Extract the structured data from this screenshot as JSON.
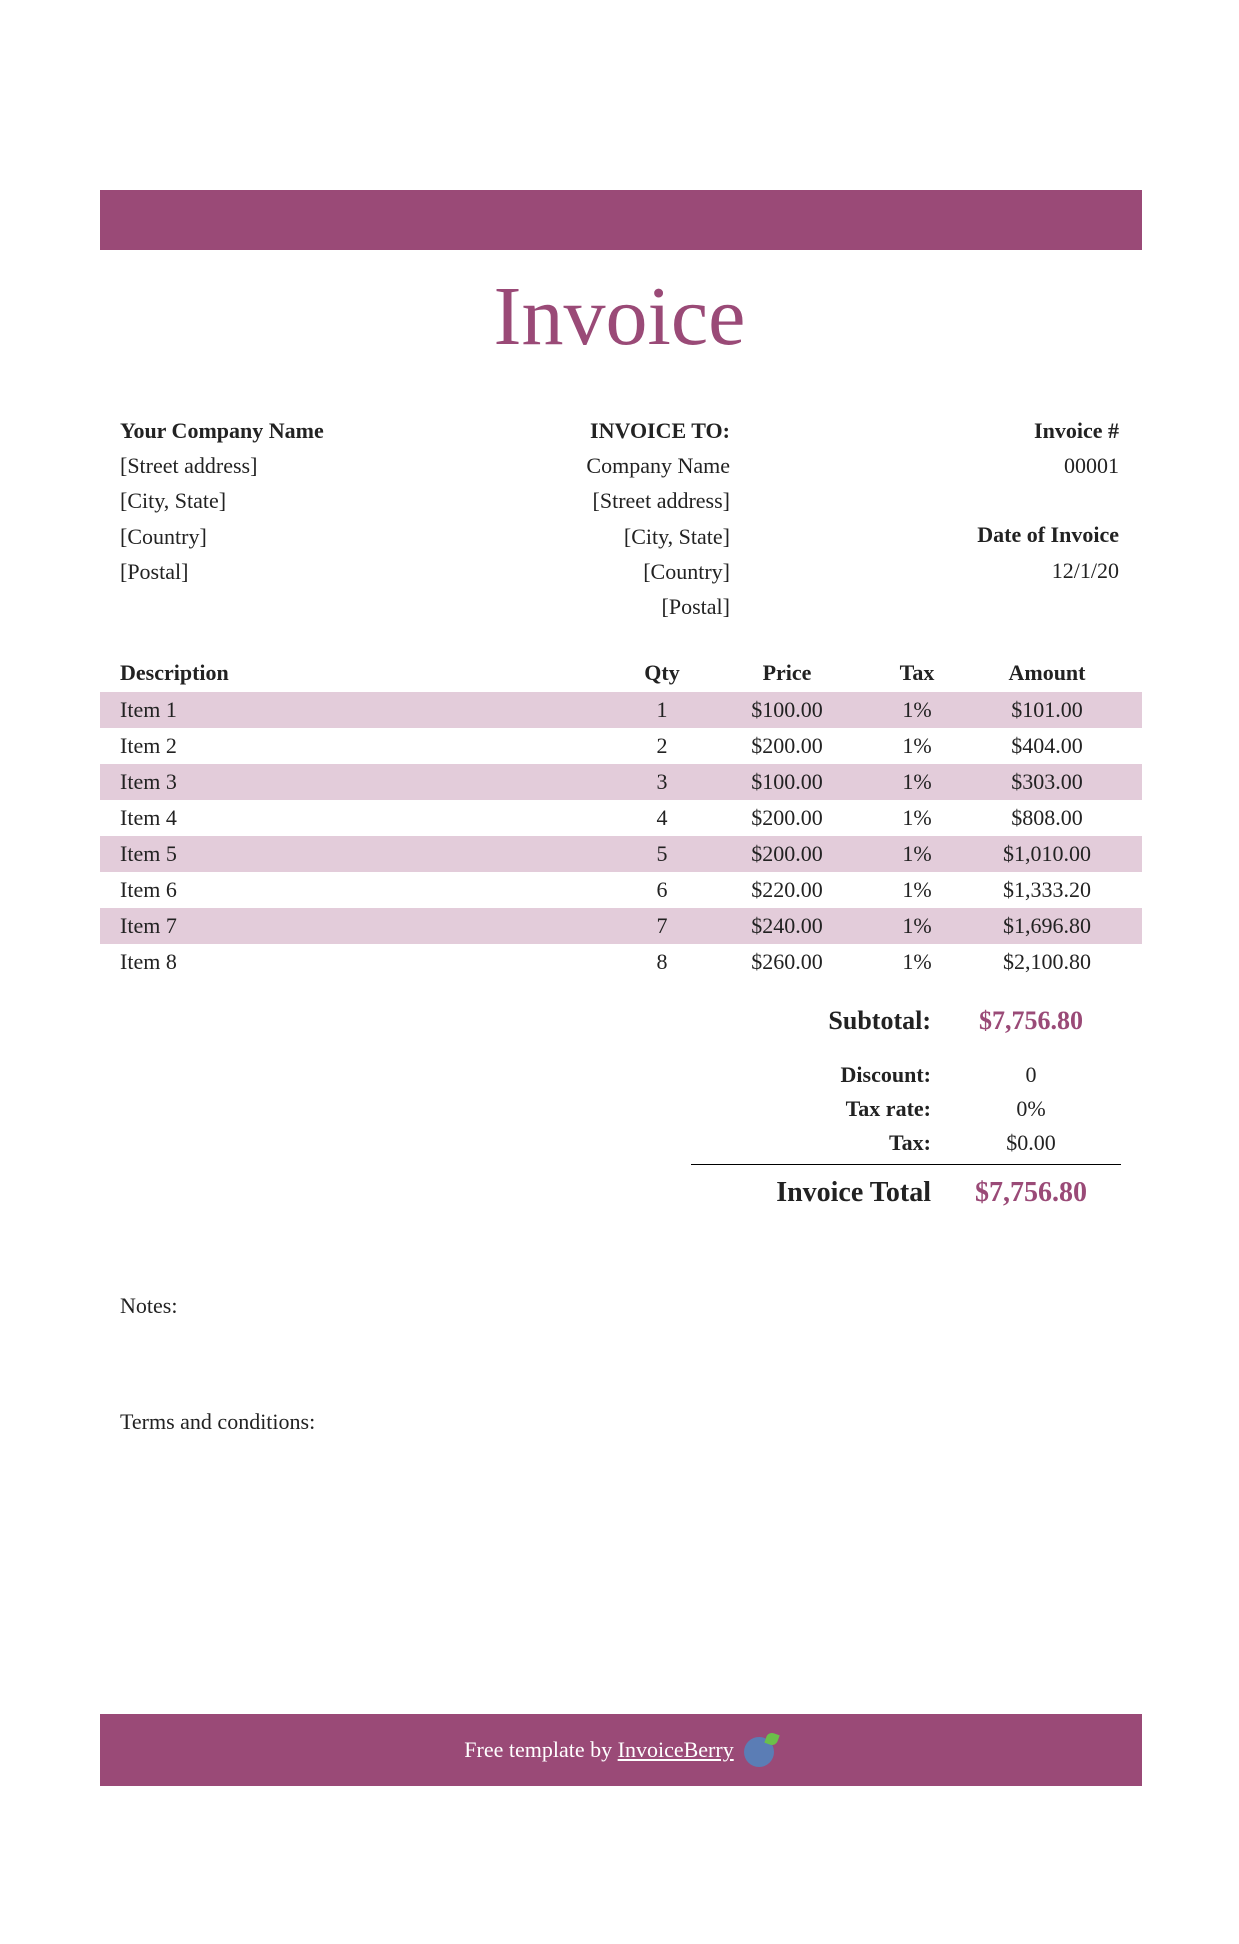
{
  "colors": {
    "accent": "#9a4a77",
    "row_alt": "#e3ccda",
    "footer_bg": "#9a4a77",
    "text": "#222222",
    "background": "#ffffff"
  },
  "title": "Invoice",
  "from": {
    "heading": "Your Company Name",
    "lines": [
      "[Street address]",
      "[City, State]",
      "[Country]",
      "[Postal]"
    ]
  },
  "to": {
    "heading": "INVOICE TO:",
    "lines": [
      "Company Name",
      "[Street address]",
      "[City, State]",
      "[Country]",
      "[Postal]"
    ]
  },
  "meta": {
    "invoice_num_label": "Invoice #",
    "invoice_num": "00001",
    "date_label": "Date of Invoice",
    "date": "12/1/20"
  },
  "table": {
    "columns": [
      "Description",
      "Qty",
      "Price",
      "Tax",
      "Amount"
    ],
    "rows": [
      {
        "desc": "Item 1",
        "qty": "1",
        "price": "$100.00",
        "tax": "1%",
        "amount": "$101.00"
      },
      {
        "desc": "Item 2",
        "qty": "2",
        "price": "$200.00",
        "tax": "1%",
        "amount": "$404.00"
      },
      {
        "desc": "Item 3",
        "qty": "3",
        "price": "$100.00",
        "tax": "1%",
        "amount": "$303.00"
      },
      {
        "desc": "Item 4",
        "qty": "4",
        "price": "$200.00",
        "tax": "1%",
        "amount": "$808.00"
      },
      {
        "desc": "Item 5",
        "qty": "5",
        "price": "$200.00",
        "tax": "1%",
        "amount": "$1,010.00"
      },
      {
        "desc": "Item 6",
        "qty": "6",
        "price": "$220.00",
        "tax": "1%",
        "amount": "$1,333.20"
      },
      {
        "desc": "Item 7",
        "qty": "7",
        "price": "$240.00",
        "tax": "1%",
        "amount": "$1,696.80"
      },
      {
        "desc": "Item 8",
        "qty": "8",
        "price": "$260.00",
        "tax": "1%",
        "amount": "$2,100.80"
      }
    ]
  },
  "totals": {
    "subtotal_label": "Subtotal:",
    "subtotal": "$7,756.80",
    "discount_label": "Discount:",
    "discount": "0",
    "taxrate_label": "Tax rate:",
    "taxrate": "0%",
    "tax_label": "Tax:",
    "tax": "$0.00",
    "grand_label": "Invoice Total",
    "grand": "$7,756.80"
  },
  "notes_label": "Notes:",
  "terms_label": "Terms and conditions:",
  "footer": {
    "prefix": "Free template by ",
    "link_text": "InvoiceBerry"
  }
}
